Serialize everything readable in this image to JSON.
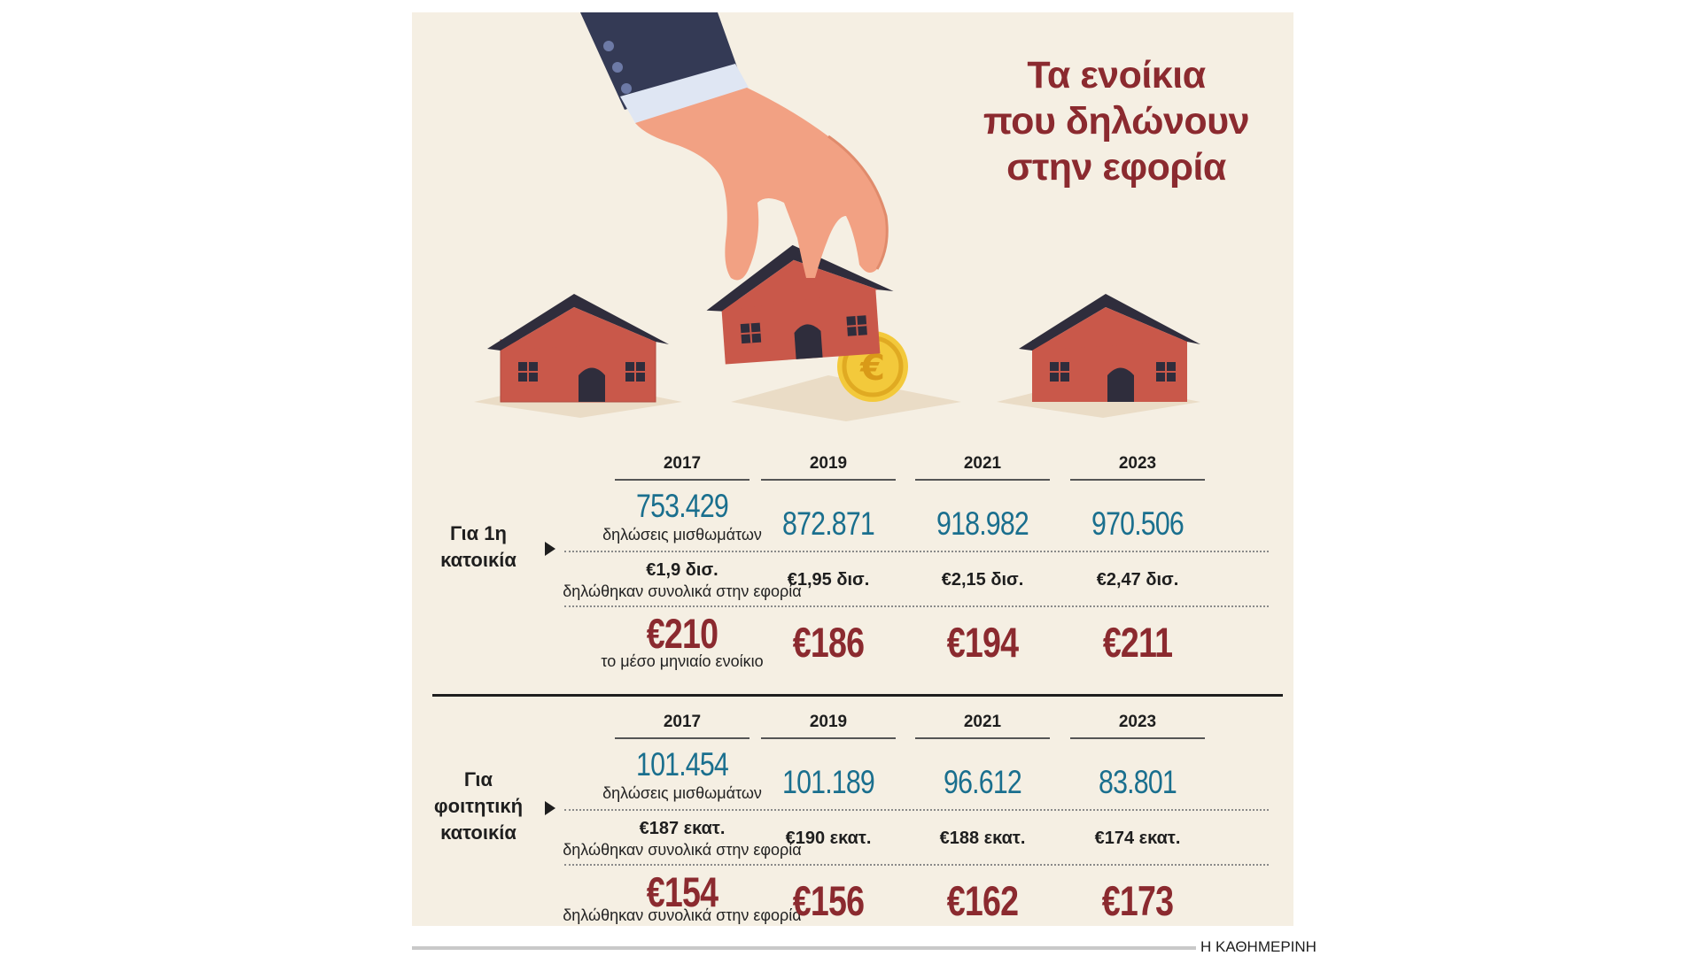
{
  "title_lines": [
    "Τα ενοίκια",
    "που δηλώνουν",
    "στην εφορία"
  ],
  "footer": "Η ΚΑΘΗΜΕΡΙΝΗ",
  "colors": {
    "accent_red": "#8b2a2f",
    "accent_blue": "#1a6f8e",
    "background": "#f5efe3"
  },
  "sections": [
    {
      "label_lines": [
        "Για 1η",
        "κατοικία"
      ],
      "years": [
        "2017",
        "2019",
        "2021",
        "2023"
      ],
      "declarations": [
        "753.429",
        "872.871",
        "918.982",
        "970.506"
      ],
      "declarations_caption": "δηλώσεις μισθωμάτων",
      "total": [
        "€1,9 δισ.",
        "€1,95 δισ.",
        "€2,15 δισ.",
        "€2,47 δισ."
      ],
      "total_caption": "δηλώθηκαν συνολικά στην εφορία",
      "avg": [
        "€210",
        "€186",
        "€194",
        "€211"
      ],
      "avg_caption": "το μέσο μηνιαίο ενοίκιο"
    },
    {
      "label_lines": [
        "Για",
        "φοιτητική",
        "κατοικία"
      ],
      "years": [
        "2017",
        "2019",
        "2021",
        "2023"
      ],
      "declarations": [
        "101.454",
        "101.189",
        "96.612",
        "83.801"
      ],
      "declarations_caption": "δηλώσεις μισθωμάτων",
      "total": [
        "€187 εκατ.",
        "€190 εκατ.",
        "€188 εκατ.",
        "€174 εκατ."
      ],
      "total_caption": "δηλώθηκαν συνολικά στην εφορία",
      "avg": [
        "€154",
        "€156",
        "€162",
        "€173"
      ],
      "avg_caption": "δηλώθηκαν συνολικά στην εφορία"
    }
  ],
  "icons": [
    "hand-icon",
    "house-icon",
    "euro-coin-icon"
  ]
}
